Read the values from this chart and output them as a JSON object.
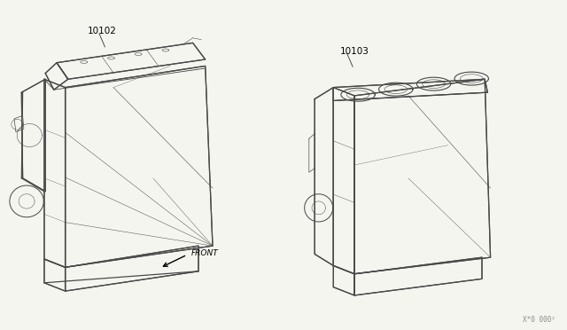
{
  "background_color": "#f5f5f0",
  "fig_width": 6.4,
  "fig_height": 3.72,
  "dpi": 100,
  "part_label_1": "10102",
  "part_label_2": "10103",
  "front_label": "FRONT",
  "part_code": "X*0 000²",
  "line_color": "#4a4a4a",
  "label_fontsize": 7.5,
  "front_fontsize": 6.5,
  "code_fontsize": 5.5,
  "lw_main": 0.9,
  "lw_detail": 0.5,
  "engine1_ox": 0.04,
  "engine1_oy": 0.08,
  "engine1_sc": 0.48,
  "engine2_ox": 0.58,
  "engine2_oy": 0.1,
  "engine2_sc": 0.4
}
